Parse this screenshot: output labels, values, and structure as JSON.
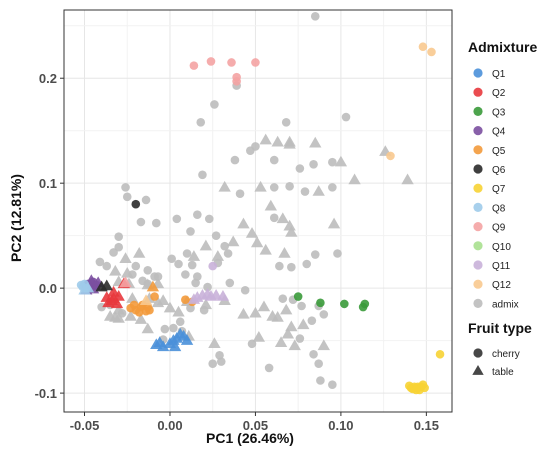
{
  "chart_data": {
    "type": "scatter",
    "xlabel": "PC1 (26.46%)",
    "ylabel": "PC2 (12.81%)",
    "xlim": [
      -0.062,
      0.165
    ],
    "ylim": [
      -0.118,
      0.265
    ],
    "x_ticks": [
      -0.05,
      0.0,
      0.05,
      0.1,
      0.15
    ],
    "x_tick_labels": [
      "-0.05",
      "0.00",
      "0.05",
      "0.10",
      "0.15"
    ],
    "y_ticks": [
      -0.1,
      0.0,
      0.1,
      0.2
    ],
    "y_tick_labels": [
      "-0.1",
      "0.0",
      "0.1",
      "0.2"
    ],
    "grid": true,
    "legend_placement": "right",
    "color_legend": {
      "title": "Admixture",
      "entries": [
        {
          "label": "Q1",
          "color": "#4a90d9"
        },
        {
          "label": "Q2",
          "color": "#e8383d"
        },
        {
          "label": "Q3",
          "color": "#3a9a3a"
        },
        {
          "label": "Q4",
          "color": "#7b4fa0"
        },
        {
          "label": "Q5",
          "color": "#f39a3b"
        },
        {
          "label": "Q6",
          "color": "#2a2a2a"
        },
        {
          "label": "Q7",
          "color": "#f7d334"
        },
        {
          "label": "Q8",
          "color": "#9ecbea"
        },
        {
          "label": "Q9",
          "color": "#f4a3a3"
        },
        {
          "label": "Q10",
          "color": "#a8e08f"
        },
        {
          "label": "Q11",
          "color": "#c9b1d9"
        },
        {
          "label": "Q12",
          "color": "#f8c98f"
        },
        {
          "label": "admix",
          "color": "#bdbdbd"
        }
      ]
    },
    "shape_legend": {
      "title": "Fruit type",
      "entries": [
        {
          "label": "cherry",
          "shape": "circle"
        },
        {
          "label": "table",
          "shape": "triangle"
        }
      ]
    },
    "series": [
      {
        "group": "admix",
        "shape": "circle",
        "points": [
          [
            0.085,
            0.259
          ],
          [
            0.103,
            0.163
          ],
          [
            0.039,
            0.193
          ],
          [
            0.026,
            0.175
          ],
          [
            0.018,
            0.158
          ],
          [
            0.068,
            0.158
          ],
          [
            0.05,
            0.135
          ],
          [
            0.047,
            0.131
          ],
          [
            0.061,
            0.122
          ],
          [
            0.038,
            0.122
          ],
          [
            0.084,
            0.118
          ],
          [
            0.076,
            0.114
          ],
          [
            0.019,
            0.108
          ],
          [
            0.07,
            0.097
          ],
          [
            0.061,
            0.096
          ],
          [
            0.079,
            0.092
          ],
          [
            0.095,
            0.096
          ],
          [
            0.041,
            0.09
          ],
          [
            0.095,
            0.12
          ],
          [
            -0.026,
            0.096
          ],
          [
            -0.025,
            0.087
          ],
          [
            -0.014,
            0.084
          ],
          [
            0.016,
            0.07
          ],
          [
            0.004,
            0.066
          ],
          [
            0.023,
            0.066
          ],
          [
            0.061,
            0.067
          ],
          [
            -0.008,
            0.062
          ],
          [
            0.012,
            0.054
          ],
          [
            0.027,
            0.05
          ],
          [
            0.032,
            0.04
          ],
          [
            0.034,
            0.033
          ],
          [
            0.01,
            0.033
          ],
          [
            0.028,
            0.024
          ],
          [
            -0.017,
            0.063
          ],
          [
            -0.03,
            0.049
          ],
          [
            -0.03,
            0.039
          ],
          [
            0.001,
            0.028
          ],
          [
            0.013,
            0.022
          ],
          [
            0.005,
            0.023
          ],
          [
            0.085,
            0.032
          ],
          [
            0.098,
            0.033
          ],
          [
            0.08,
            0.023
          ],
          [
            0.064,
            0.021
          ],
          [
            0.071,
            0.02
          ],
          [
            0.016,
            0.011
          ],
          [
            -0.033,
            0.034
          ],
          [
            -0.041,
            0.025
          ],
          [
            -0.037,
            0.021
          ],
          [
            -0.02,
            0.021
          ],
          [
            -0.013,
            0.017
          ],
          [
            -0.007,
            0.011
          ],
          [
            -0.016,
            0.007
          ],
          [
            -0.022,
            0.013
          ],
          [
            -0.013,
            0.004
          ],
          [
            0.015,
            0.005
          ],
          [
            0.022,
            0.001
          ],
          [
            0.035,
            0.005
          ],
          [
            0.044,
            -0.002
          ],
          [
            0.009,
            0.013
          ],
          [
            -0.009,
            0.011
          ],
          [
            0.012,
            -0.019
          ],
          [
            0.02,
            -0.021
          ],
          [
            0.066,
            -0.01
          ],
          [
            0.072,
            -0.011
          ],
          [
            0.077,
            -0.017
          ],
          [
            0.087,
            -0.017
          ],
          [
            0.076,
            -0.048
          ],
          [
            0.083,
            -0.031
          ],
          [
            0.09,
            -0.025
          ],
          [
            0.084,
            -0.063
          ],
          [
            0.087,
            -0.072
          ],
          [
            0.088,
            -0.088
          ],
          [
            0.095,
            -0.092
          ],
          [
            0.058,
            -0.076
          ],
          [
            0.025,
            -0.072
          ],
          [
            0.029,
            -0.064
          ],
          [
            0.03,
            -0.07
          ],
          [
            -0.004,
            -0.049
          ],
          [
            -0.003,
            -0.039
          ],
          [
            0.002,
            -0.038
          ],
          [
            0.006,
            -0.032
          ],
          [
            0.007,
            -0.041
          ],
          [
            -0.028,
            -0.024
          ],
          [
            -0.04,
            -0.018
          ],
          [
            -0.035,
            -0.016
          ],
          [
            0.048,
            -0.053
          ]
        ]
      },
      {
        "group": "admix",
        "shape": "triangle",
        "points": [
          [
            0.056,
            0.141
          ],
          [
            0.063,
            0.139
          ],
          [
            0.07,
            0.137
          ],
          [
            0.07,
            0.139
          ],
          [
            0.085,
            0.138
          ],
          [
            0.1,
            0.12
          ],
          [
            0.126,
            0.13
          ],
          [
            0.139,
            0.103
          ],
          [
            0.108,
            0.103
          ],
          [
            0.087,
            0.092
          ],
          [
            0.053,
            0.096
          ],
          [
            0.032,
            0.096
          ],
          [
            0.059,
            0.078
          ],
          [
            0.066,
            0.066
          ],
          [
            0.07,
            0.059
          ],
          [
            0.043,
            0.061
          ],
          [
            0.071,
            0.053
          ],
          [
            0.096,
            0.061
          ],
          [
            0.048,
            0.052
          ],
          [
            0.037,
            0.044
          ],
          [
            0.021,
            0.04
          ],
          [
            0.051,
            0.043
          ],
          [
            0.056,
            0.036
          ],
          [
            0.067,
            0.033
          ],
          [
            0.014,
            0.03
          ],
          [
            0.028,
            0.03
          ],
          [
            -0.018,
            0.033
          ],
          [
            -0.026,
            0.028
          ],
          [
            -0.032,
            0.016
          ],
          [
            -0.025,
            0.014
          ],
          [
            -0.03,
            0.006
          ],
          [
            -0.024,
            0.004
          ],
          [
            -0.013,
            0.003
          ],
          [
            -0.007,
            0.004
          ],
          [
            -0.012,
            -0.01
          ],
          [
            -0.022,
            -0.01
          ],
          [
            -0.03,
            -0.021
          ],
          [
            -0.032,
            -0.028
          ],
          [
            -0.035,
            -0.027
          ],
          [
            -0.03,
            -0.029
          ],
          [
            -0.023,
            -0.027
          ],
          [
            -0.007,
            -0.014
          ],
          [
            0.0,
            -0.019
          ],
          [
            0.005,
            -0.023
          ],
          [
            0.021,
            -0.016
          ],
          [
            0.032,
            -0.012
          ],
          [
            0.043,
            -0.025
          ],
          [
            0.05,
            -0.024
          ],
          [
            0.055,
            -0.018
          ],
          [
            0.06,
            -0.027
          ],
          [
            0.068,
            -0.021
          ],
          [
            0.071,
            -0.037
          ],
          [
            0.078,
            -0.035
          ],
          [
            0.063,
            -0.028
          ],
          [
            0.052,
            -0.047
          ],
          [
            0.065,
            -0.052
          ],
          [
            0.069,
            -0.044
          ],
          [
            0.073,
            -0.055
          ],
          [
            0.09,
            -0.055
          ],
          [
            0.026,
            -0.053
          ],
          [
            0.011,
            -0.046
          ],
          [
            -0.013,
            -0.039
          ],
          [
            -0.017,
            -0.03
          ],
          [
            -0.004,
            -0.012
          ],
          [
            0.01,
            -0.013
          ]
        ]
      },
      {
        "group": "Q1",
        "shape": "triangle",
        "points": [
          [
            -0.008,
            -0.054
          ],
          [
            -0.004,
            -0.056
          ],
          [
            0.0,
            -0.053
          ],
          [
            0.002,
            -0.05
          ],
          [
            0.004,
            -0.048
          ],
          [
            0.006,
            -0.044
          ],
          [
            0.008,
            -0.046
          ],
          [
            0.01,
            -0.05
          ],
          [
            -0.006,
            -0.052
          ],
          [
            0.003,
            -0.056
          ]
        ]
      },
      {
        "group": "Q2",
        "shape": "triangle",
        "points": [
          [
            -0.037,
            -0.009
          ],
          [
            -0.034,
            -0.012
          ],
          [
            -0.031,
            -0.015
          ],
          [
            -0.036,
            -0.014
          ],
          [
            -0.033,
            -0.01
          ],
          [
            -0.03,
            -0.008
          ],
          [
            -0.027,
            0.004
          ],
          [
            -0.033,
            -0.004
          ]
        ]
      },
      {
        "group": "Q3",
        "shape": "circle",
        "points": [
          [
            0.075,
            -0.008
          ],
          [
            0.088,
            -0.014
          ],
          [
            0.102,
            -0.015
          ],
          [
            0.114,
            -0.015
          ],
          [
            0.113,
            -0.018
          ]
        ]
      },
      {
        "group": "Q4",
        "shape": "triangle",
        "points": [
          [
            -0.049,
            -0.002
          ],
          [
            -0.047,
            0.003
          ],
          [
            -0.045,
            -0.001
          ],
          [
            -0.044,
            0.002
          ],
          [
            -0.042,
            0.005
          ],
          [
            -0.046,
            0.007
          ]
        ]
      },
      {
        "group": "Q4",
        "shape": "circle",
        "points": [
          [
            -0.048,
            0.004
          ],
          [
            -0.045,
            0.006
          ],
          [
            -0.043,
            0.003
          ]
        ]
      },
      {
        "group": "Q5",
        "shape": "circle",
        "points": [
          [
            -0.023,
            -0.019
          ],
          [
            -0.02,
            -0.021
          ],
          [
            -0.017,
            -0.018
          ],
          [
            -0.014,
            -0.022
          ],
          [
            -0.012,
            -0.021
          ],
          [
            -0.018,
            -0.023
          ],
          [
            -0.009,
            -0.008
          ],
          [
            -0.021,
            -0.016
          ],
          [
            -0.016,
            -0.016
          ],
          [
            -0.013,
            -0.018
          ],
          [
            0.009,
            -0.011
          ],
          [
            0.013,
            -0.013
          ]
        ]
      },
      {
        "group": "Q5",
        "shape": "triangle",
        "points": [
          [
            -0.01,
            0.001
          ]
        ]
      },
      {
        "group": "Q6",
        "shape": "circle",
        "points": [
          [
            -0.02,
            0.08
          ]
        ]
      },
      {
        "group": "Q6",
        "shape": "triangle",
        "points": [
          [
            -0.04,
            0.001
          ],
          [
            -0.037,
            0.002
          ]
        ]
      },
      {
        "group": "Q7",
        "shape": "circle",
        "points": [
          [
            0.14,
            -0.093
          ],
          [
            0.141,
            -0.095
          ],
          [
            0.142,
            -0.096
          ],
          [
            0.143,
            -0.094
          ],
          [
            0.144,
            -0.095
          ],
          [
            0.145,
            -0.094
          ],
          [
            0.146,
            -0.097
          ],
          [
            0.147,
            -0.094
          ],
          [
            0.148,
            -0.092
          ],
          [
            0.149,
            -0.095
          ],
          [
            0.144,
            -0.097
          ],
          [
            0.158,
            -0.063
          ]
        ]
      },
      {
        "group": "Q8",
        "shape": "circle",
        "points": [
          [
            -0.052,
            0.003
          ],
          [
            -0.051,
            0.001
          ],
          [
            -0.05,
            0.004
          ],
          [
            -0.049,
            0.0
          ]
        ]
      },
      {
        "group": "Q8",
        "shape": "triangle",
        "points": [
          [
            -0.05,
            -0.002
          ],
          [
            -0.048,
            0.0
          ]
        ]
      },
      {
        "group": "Q9",
        "shape": "circle",
        "points": [
          [
            0.014,
            0.212
          ],
          [
            0.024,
            0.216
          ],
          [
            0.036,
            0.215
          ],
          [
            0.05,
            0.215
          ],
          [
            0.039,
            0.201
          ],
          [
            0.039,
            0.197
          ]
        ]
      },
      {
        "group": "Q9",
        "shape": "triangle",
        "points": [
          [
            -0.026,
            0.005
          ]
        ]
      },
      {
        "group": "Q11",
        "shape": "circle",
        "points": [
          [
            0.025,
            0.021
          ]
        ]
      },
      {
        "group": "Q11",
        "shape": "triangle",
        "points": [
          [
            0.016,
            -0.009
          ],
          [
            0.019,
            -0.007
          ],
          [
            0.022,
            -0.006
          ],
          [
            0.024,
            -0.008
          ],
          [
            0.027,
            -0.007
          ],
          [
            0.031,
            -0.008
          ],
          [
            0.014,
            -0.011
          ]
        ]
      },
      {
        "group": "Q12",
        "shape": "circle",
        "points": [
          [
            0.148,
            0.23
          ],
          [
            0.153,
            0.225
          ],
          [
            0.129,
            0.126
          ]
        ]
      },
      {
        "group": "Q12",
        "shape": "triangle",
        "points": [
          [
            -0.014,
            -0.012
          ]
        ]
      }
    ]
  }
}
